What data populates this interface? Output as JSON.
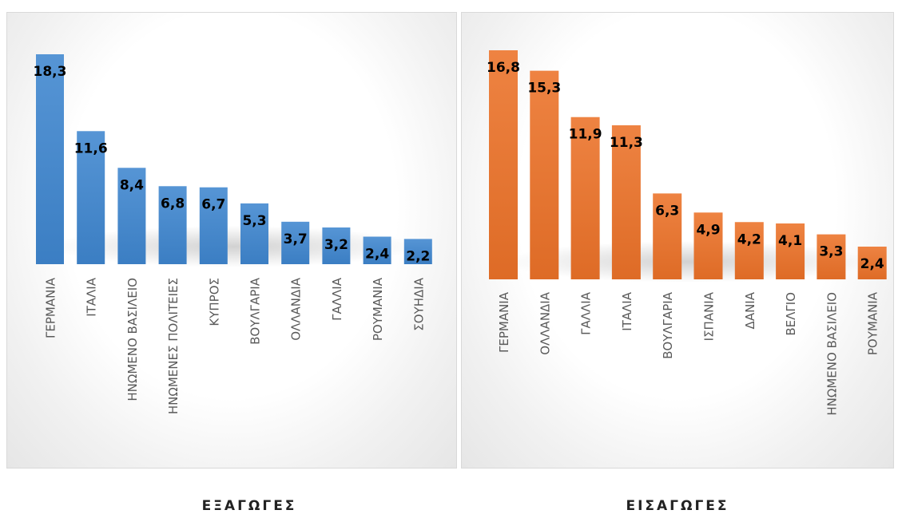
{
  "chart_data": [
    {
      "type": "bar",
      "title": "ΕΞΑΓΩΓΕΣ",
      "categories": [
        "ΓΕΡΜΑΝΙΑ",
        "ΙΤΑΛΙΑ",
        "ΗΝΩΜΕΝΟ ΒΑΣΙΛΕΙΟ",
        "ΗΝΩΜΕΝΕΣ ΠΟΛΙΤΕΙΕΣ",
        "ΚΥΠΡΟΣ",
        "ΒΟΥΛΓΑΡΙΑ",
        "ΟΛΛΑΝΔΙΑ",
        "ΓΑΛΛΙΑ",
        "ΡΟΥΜΑΝΙΑ",
        "ΣΟΥΗΔΙΑ"
      ],
      "values": [
        18.3,
        11.6,
        8.4,
        6.8,
        6.7,
        5.3,
        3.7,
        3.2,
        2.4,
        2.2
      ],
      "value_labels": [
        "18,3",
        "11,6",
        "8,4",
        "6,8",
        "6,7",
        "5,3",
        "3,7",
        "3,2",
        "2,4",
        "2,2"
      ],
      "color": "#3f86cf",
      "ylim": [
        0,
        18.3
      ],
      "grid": false,
      "legend": "none"
    },
    {
      "type": "bar",
      "title": "ΕΙΣΑΓΩΓΕΣ",
      "categories": [
        "ΓΕΡΜΑΝΙΑ",
        "ΟΛΛΑΝΔΙΑ",
        "ΓΑΛΛΙΑ",
        "ΙΤΑΛΙΑ",
        "ΒΟΥΛΓΑΡΙΑ",
        "ΙΣΠΑΝΙΑ",
        "ΔΑΝΙΑ",
        "ΒΕΛΓΙΟ",
        "ΗΝΩΜΕΝΟ ΒΑΣΙΛΕΙΟ",
        "ΡΟΥΜΑΝΙΑ"
      ],
      "values": [
        16.8,
        15.3,
        11.9,
        11.3,
        6.3,
        4.9,
        4.2,
        4.1,
        3.3,
        2.4
      ],
      "value_labels": [
        "16,8",
        "15,3",
        "11,9",
        "11,3",
        "6,3",
        "4,9",
        "4,2",
        "4,1",
        "3,3",
        "2,4"
      ],
      "color": "#ec7228",
      "ylim": [
        0,
        16.8
      ],
      "grid": false,
      "legend": "none"
    }
  ]
}
